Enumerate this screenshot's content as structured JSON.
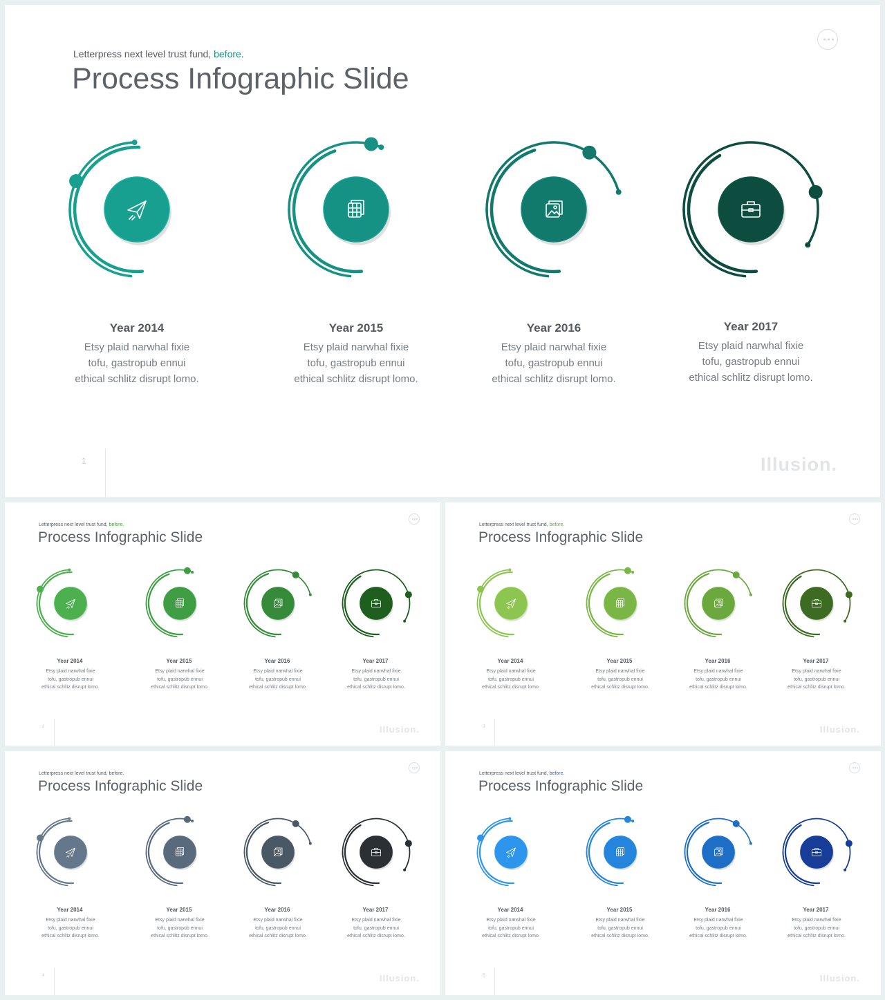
{
  "subtitle": "Letterpress next level trust fund,",
  "subtitle_accent": "before.",
  "title": "Process Infographic Slide",
  "brand": "Illusion.",
  "items": [
    {
      "year": "Year 2014",
      "desc": "Etsy plaid  narwhal fixie\ntofu, gastropub ennui\nethical schlitz disrupt lomo.",
      "icon": "paper-plane-icon"
    },
    {
      "year": "Year 2015",
      "desc": "Etsy plaid  narwhal fixie\ntofu, gastropub ennui\nethical schlitz disrupt lomo.",
      "icon": "layers-icon"
    },
    {
      "year": "Year 2016",
      "desc": "Etsy plaid  narwhal fixie\ntofu, gastropub ennui\nethical schlitz disrupt lomo.",
      "icon": "image-icon"
    },
    {
      "year": "Year 2017",
      "desc": "Etsy plaid  narwhal fixie\ntofu, gastropub ennui\nethical schlitz disrupt lomo.",
      "icon": "briefcase-icon"
    }
  ],
  "slides": [
    {
      "number": "1",
      "accent": "#1e8e80",
      "palette": [
        "#17a08f",
        "#159283",
        "#117a6d",
        "#0d4d40"
      ]
    },
    {
      "number": "2",
      "accent": "#4a9b3a",
      "palette": [
        "#4cb04f",
        "#3f9e43",
        "#358b39",
        "#1e5e1f"
      ]
    },
    {
      "number": "3",
      "accent": "#6aa53a",
      "palette": [
        "#8cc650",
        "#79b645",
        "#6ba83d",
        "#3d6b22"
      ]
    },
    {
      "number": "4",
      "accent": "#555a60",
      "palette": [
        "#65778a",
        "#586a7b",
        "#4a5866",
        "#2b3034"
      ]
    },
    {
      "number": "5",
      "accent": "#1e6fc0",
      "palette": [
        "#2d95ec",
        "#2584dc",
        "#1e6ec6",
        "#173d98"
      ]
    }
  ]
}
